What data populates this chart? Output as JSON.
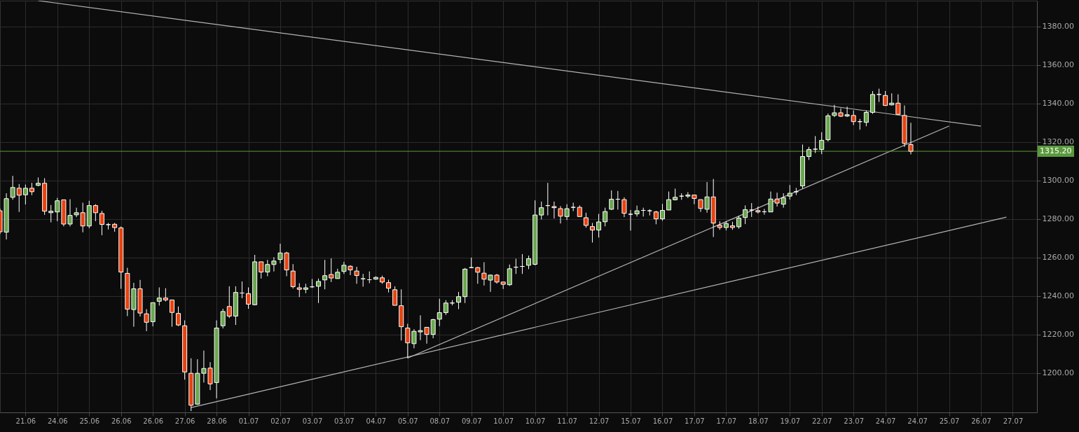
{
  "chart_data": {
    "type": "candlestick",
    "categories": [
      null,
      null,
      null,
      null,
      "21.06",
      null,
      null,
      null,
      null,
      "24.06",
      null,
      null,
      null,
      null,
      "25.06",
      null,
      null,
      null,
      null,
      "26.06",
      null,
      null,
      null,
      null,
      "26.06",
      null,
      null,
      null,
      null,
      "27.06",
      null,
      null,
      null,
      null,
      "28.06",
      null,
      null,
      null,
      null,
      "01.07",
      null,
      null,
      null,
      null,
      "02.07",
      null,
      null,
      null,
      null,
      "03.07",
      null,
      null,
      null,
      null,
      "03.07",
      null,
      null,
      null,
      null,
      "04.07",
      null,
      null,
      null,
      null,
      "05.07",
      null,
      null,
      null,
      null,
      "08.07",
      null,
      null,
      null,
      null,
      "09.07",
      null,
      null,
      null,
      null,
      "10.07",
      null,
      null,
      null,
      null,
      "10.07",
      null,
      null,
      null,
      null,
      "11.07",
      null,
      null,
      null,
      null,
      "12.07",
      null,
      null,
      null,
      null,
      "15.07",
      null,
      null,
      null,
      null,
      "16.07",
      null,
      null,
      null,
      null,
      "17.07",
      null,
      null,
      null,
      null,
      "17.07",
      null,
      null,
      null,
      null,
      "18.07",
      null,
      null,
      null,
      null,
      "19.07",
      null,
      null,
      null,
      null,
      "22.07",
      null,
      null,
      null,
      null,
      "23.07",
      null,
      null,
      null,
      null,
      "24.07",
      null,
      null,
      null,
      null,
      "24.07",
      null,
      null,
      null,
      null,
      "25.07",
      null,
      null,
      null,
      null,
      "26.07",
      null,
      null,
      null,
      null,
      "27.07",
      null,
      null,
      null
    ],
    "ohlc": [
      [
        1284.3,
        1285.5,
        1272.2,
        1273.4
      ],
      [
        1273.2,
        1293.4,
        1269.4,
        1290.6
      ],
      [
        1291.3,
        1302.4,
        1290.0,
        1296.4
      ],
      [
        1296.0,
        1298.2,
        1283.7,
        1292.4
      ],
      [
        1292.6,
        1297.9,
        1287.6,
        1296.0
      ],
      [
        1296.0,
        1298.8,
        1292.4,
        1294.2
      ],
      [
        1297.5,
        1301.6,
        1297.0,
        1298.6
      ],
      [
        1298.6,
        1301.2,
        1282.2,
        1284.1
      ],
      [
        1283.3,
        1287.3,
        1278.3,
        1284.1
      ],
      [
        1283.7,
        1291.0,
        1278.9,
        1289.5
      ],
      [
        1290.0,
        1290.0,
        1276.2,
        1277.4
      ],
      [
        1277.4,
        1290.3,
        1276.2,
        1281.9
      ],
      [
        1282.2,
        1285.9,
        1281.0,
        1283.3
      ],
      [
        1283.3,
        1288.5,
        1273.1,
        1276.4
      ],
      [
        1276.4,
        1289.5,
        1275.2,
        1287.0
      ],
      [
        1287.0,
        1287.7,
        1278.9,
        1283.3
      ],
      [
        1282.9,
        1284.3,
        1271.6,
        1277.2
      ],
      [
        1277.1,
        1278.0,
        1274.6,
        1277.1
      ],
      [
        1277.3,
        1278.0,
        1273.4,
        1275.6
      ],
      [
        1275.4,
        1276.2,
        1243.8,
        1252.5
      ],
      [
        1251.8,
        1254.7,
        1229.6,
        1233.2
      ],
      [
        1233.0,
        1246.9,
        1224.1,
        1243.8
      ],
      [
        1243.8,
        1248.4,
        1229.4,
        1231.2
      ],
      [
        1230.8,
        1233.2,
        1221.8,
        1226.4
      ],
      [
        1226.7,
        1236.6,
        1224.3,
        1236.6
      ],
      [
        1237.3,
        1244.5,
        1235.1,
        1239.0
      ],
      [
        1239.0,
        1244.1,
        1237.2,
        1238.0
      ],
      [
        1238.0,
        1238.0,
        1224.1,
        1231.5
      ],
      [
        1231.0,
        1234.6,
        1224.4,
        1225.0
      ],
      [
        1224.6,
        1227.4,
        1196.6,
        1200.6
      ],
      [
        1199.9,
        1207.7,
        1180.3,
        1183.3
      ],
      [
        1183.9,
        1207.2,
        1183.5,
        1199.9
      ],
      [
        1199.9,
        1211.7,
        1195.1,
        1202.4
      ],
      [
        1202.6,
        1205.7,
        1191.2,
        1194.4
      ],
      [
        1195.1,
        1227.4,
        1186.9,
        1223.4
      ],
      [
        1224.6,
        1233.4,
        1223.2,
        1232.0
      ],
      [
        1234.6,
        1245.1,
        1228.6,
        1229.6
      ],
      [
        1229.6,
        1245.1,
        1225.0,
        1241.9
      ],
      [
        1241.6,
        1247.6,
        1238.9,
        1241.6
      ],
      [
        1241.3,
        1244.5,
        1233.4,
        1235.8
      ],
      [
        1235.5,
        1261.4,
        1235.2,
        1257.8
      ],
      [
        1257.8,
        1257.8,
        1249.1,
        1252.5
      ],
      [
        1252.5,
        1258.8,
        1250.3,
        1256.4
      ],
      [
        1256.4,
        1260.2,
        1252.8,
        1258.2
      ],
      [
        1259.0,
        1267.2,
        1257.0,
        1262.4
      ],
      [
        1262.4,
        1263.0,
        1250.3,
        1253.6
      ],
      [
        1253.0,
        1256.6,
        1243.9,
        1244.9
      ],
      [
        1244.3,
        1246.7,
        1239.5,
        1243.5
      ],
      [
        1243.5,
        1246.4,
        1241.5,
        1244.3
      ],
      [
        1244.8,
        1248.9,
        1244.2,
        1244.8
      ],
      [
        1245.1,
        1249.1,
        1236.4,
        1247.6
      ],
      [
        1248.4,
        1258.8,
        1243.5,
        1250.6
      ],
      [
        1251.2,
        1259.6,
        1247.3,
        1249.4
      ],
      [
        1249.1,
        1254.2,
        1249.1,
        1252.4
      ],
      [
        1252.8,
        1257.8,
        1251.5,
        1256.0
      ],
      [
        1255.5,
        1256.0,
        1250.9,
        1253.6
      ],
      [
        1253.0,
        1255.2,
        1246.4,
        1250.7
      ],
      [
        1249.0,
        1251.5,
        1244.9,
        1249.0
      ],
      [
        1248.5,
        1252.8,
        1246.7,
        1248.5
      ],
      [
        1248.8,
        1250.3,
        1248.5,
        1249.7
      ],
      [
        1249.5,
        1250.6,
        1246.4,
        1247.3
      ],
      [
        1247.0,
        1248.5,
        1241.9,
        1244.1
      ],
      [
        1243.3,
        1245.1,
        1235.2,
        1235.2
      ],
      [
        1235.0,
        1243.5,
        1216.9,
        1224.1
      ],
      [
        1223.4,
        1225.6,
        1207.7,
        1215.7
      ],
      [
        1215.3,
        1222.8,
        1212.9,
        1221.7
      ],
      [
        1221.4,
        1230.0,
        1217.1,
        1222.1
      ],
      [
        1223.8,
        1223.8,
        1215.3,
        1220.1
      ],
      [
        1220.1,
        1228.2,
        1218.1,
        1227.8
      ],
      [
        1228.0,
        1238.6,
        1224.4,
        1231.4
      ],
      [
        1231.4,
        1237.9,
        1230.2,
        1236.4
      ],
      [
        1236.4,
        1237.9,
        1235.2,
        1236.4
      ],
      [
        1236.8,
        1242.2,
        1233.2,
        1239.7
      ],
      [
        1239.7,
        1254.6,
        1236.4,
        1254.0
      ],
      [
        1254.8,
        1260.0,
        1254.6,
        1254.8
      ],
      [
        1254.8,
        1255.2,
        1246.4,
        1252.4
      ],
      [
        1251.9,
        1257.6,
        1245.5,
        1248.8
      ],
      [
        1248.3,
        1251.2,
        1242.2,
        1250.9
      ],
      [
        1250.9,
        1251.5,
        1246.5,
        1247.3
      ],
      [
        1247.3,
        1247.3,
        1243.7,
        1246.1
      ],
      [
        1245.9,
        1256.4,
        1245.3,
        1254.2
      ],
      [
        1255.0,
        1259.4,
        1251.5,
        1255.0
      ],
      [
        1255.4,
        1261.8,
        1251.5,
        1255.4
      ],
      [
        1256.0,
        1261.0,
        1254.0,
        1259.4
      ],
      [
        1256.5,
        1289.7,
        1256.0,
        1282.1
      ],
      [
        1282.1,
        1289.1,
        1279.8,
        1285.9
      ],
      [
        1287.0,
        1298.8,
        1281.9,
        1287.0
      ],
      [
        1286.5,
        1289.1,
        1280.3,
        1285.9
      ],
      [
        1285.4,
        1286.7,
        1277.7,
        1281.5
      ],
      [
        1281.3,
        1287.7,
        1279.5,
        1285.4
      ],
      [
        1286.1,
        1288.5,
        1284.1,
        1286.1
      ],
      [
        1286.1,
        1287.1,
        1281.3,
        1281.3
      ],
      [
        1280.7,
        1283.3,
        1275.5,
        1276.7
      ],
      [
        1276.1,
        1278.0,
        1267.8,
        1274.3
      ],
      [
        1274.3,
        1282.7,
        1270.4,
        1278.5
      ],
      [
        1278.6,
        1285.9,
        1276.2,
        1283.9
      ],
      [
        1285.1,
        1294.9,
        1284.7,
        1290.3
      ],
      [
        1290.3,
        1294.6,
        1284.9,
        1290.3
      ],
      [
        1290.1,
        1291.3,
        1281.0,
        1283.0
      ],
      [
        1282.5,
        1284.7,
        1274.0,
        1282.5
      ],
      [
        1282.7,
        1287.0,
        1281.3,
        1284.3
      ],
      [
        1284.5,
        1285.9,
        1281.3,
        1284.5
      ],
      [
        1284.3,
        1285.1,
        1281.9,
        1284.3
      ],
      [
        1283.7,
        1284.3,
        1277.3,
        1280.1
      ],
      [
        1280.1,
        1287.9,
        1279.1,
        1284.5
      ],
      [
        1284.7,
        1294.3,
        1284.7,
        1290.1
      ],
      [
        1290.0,
        1295.8,
        1289.7,
        1291.3
      ],
      [
        1291.9,
        1293.4,
        1290.0,
        1291.9
      ],
      [
        1291.9,
        1294.0,
        1290.9,
        1292.5
      ],
      [
        1292.5,
        1292.5,
        1287.7,
        1290.7
      ],
      [
        1290.1,
        1290.1,
        1283.7,
        1285.5
      ],
      [
        1285.1,
        1299.2,
        1283.3,
        1291.5
      ],
      [
        1291.5,
        1300.8,
        1270.7,
        1277.9
      ],
      [
        1276.8,
        1278.9,
        1274.4,
        1275.6
      ],
      [
        1275.6,
        1278.9,
        1274.1,
        1277.7
      ],
      [
        1276.5,
        1278.6,
        1274.4,
        1275.6
      ],
      [
        1276.0,
        1281.7,
        1275.0,
        1280.5
      ],
      [
        1280.8,
        1287.1,
        1277.4,
        1284.9
      ],
      [
        1284.7,
        1288.3,
        1281.1,
        1284.7
      ],
      [
        1284.4,
        1286.5,
        1282.9,
        1283.7
      ],
      [
        1283.8,
        1285.3,
        1282.3,
        1283.8
      ],
      [
        1283.7,
        1294.3,
        1283.7,
        1290.4
      ],
      [
        1290.4,
        1293.7,
        1286.5,
        1288.3
      ],
      [
        1287.7,
        1293.4,
        1285.9,
        1291.1
      ],
      [
        1291.9,
        1297.7,
        1290.1,
        1293.4
      ],
      [
        1294.2,
        1296.2,
        1292.5,
        1294.2
      ],
      [
        1297.2,
        1318.7,
        1295.8,
        1312.5
      ],
      [
        1312.5,
        1317.5,
        1310.7,
        1316.1
      ],
      [
        1316.3,
        1323.1,
        1314.3,
        1316.3
      ],
      [
        1316.1,
        1325.1,
        1313.7,
        1320.9
      ],
      [
        1321.2,
        1334.8,
        1320.3,
        1333.6
      ],
      [
        1333.8,
        1339.3,
        1333.0,
        1335.2
      ],
      [
        1335.2,
        1337.5,
        1333.0,
        1333.4
      ],
      [
        1333.5,
        1338.4,
        1333.0,
        1334.2
      ],
      [
        1333.8,
        1336.4,
        1328.8,
        1330.6
      ],
      [
        1330.6,
        1332.0,
        1326.4,
        1330.6
      ],
      [
        1330.2,
        1336.4,
        1328.2,
        1335.4
      ],
      [
        1335.4,
        1346.5,
        1334.6,
        1344.7
      ],
      [
        1344.7,
        1347.7,
        1340.8,
        1344.7
      ],
      [
        1344.2,
        1346.5,
        1338.8,
        1339.0
      ],
      [
        1339.3,
        1345.3,
        1339.0,
        1340.2
      ],
      [
        1340.2,
        1344.8,
        1334.2,
        1334.4
      ],
      [
        1333.8,
        1339.0,
        1317.5,
        1319.3
      ],
      [
        1318.7,
        1330.0,
        1313.6,
        1315.2
      ],
      null,
      null,
      null,
      null,
      null,
      null,
      null,
      null,
      null,
      null,
      null,
      null,
      null,
      null,
      null,
      null,
      null,
      null,
      null
    ],
    "series": [
      {
        "type": "line",
        "color": "#b4b4b4",
        "values": [
          null,
          null,
          null,
          null,
          null,
          null,
          1393.4,
          null,
          null,
          null,
          null,
          null,
          null,
          null,
          null,
          null,
          null,
          null,
          null,
          null,
          null,
          null,
          null,
          null,
          null,
          null,
          null,
          null,
          null,
          null,
          null,
          null,
          null,
          null,
          null,
          null,
          null,
          null,
          null,
          null,
          null,
          null,
          null,
          null,
          null,
          null,
          null,
          null,
          null,
          null,
          null,
          null,
          null,
          null,
          null,
          null,
          null,
          null,
          null,
          null,
          null,
          null,
          null,
          null,
          null,
          null,
          null,
          null,
          null,
          null,
          null,
          null,
          null,
          null,
          null,
          null,
          null,
          null,
          null,
          null,
          null,
          null,
          null,
          null,
          null,
          null,
          null,
          null,
          null,
          null,
          null,
          null,
          null,
          null,
          null,
          null,
          null,
          null,
          null,
          null,
          null,
          null,
          null,
          null,
          null,
          null,
          null,
          null,
          null,
          null,
          null,
          null,
          null,
          null,
          null,
          null,
          null,
          null,
          null,
          null,
          null,
          null,
          null,
          null,
          null,
          null,
          null,
          null,
          null,
          null,
          null,
          null,
          null,
          null,
          null,
          null,
          null,
          null,
          null,
          null,
          null,
          null,
          null,
          null,
          null,
          null,
          null,
          null,
          null,
          null,
          null,
          null,
          null,
          null,
          1328.3,
          null,
          null,
          null,
          null,
          null,
          null,
          null,
          null
        ]
      },
      {
        "type": "line",
        "color": "#b4b4b4",
        "values": [
          null,
          null,
          null,
          null,
          null,
          null,
          null,
          null,
          null,
          null,
          null,
          null,
          null,
          null,
          null,
          null,
          null,
          null,
          null,
          null,
          null,
          null,
          null,
          null,
          null,
          null,
          null,
          null,
          null,
          null,
          null,
          null,
          null,
          null,
          null,
          null,
          null,
          null,
          null,
          null,
          null,
          null,
          null,
          null,
          null,
          null,
          null,
          null,
          null,
          null,
          null,
          null,
          null,
          null,
          null,
          null,
          null,
          null,
          null,
          null,
          null,
          null,
          null,
          null,
          1207.8,
          null,
          null,
          null,
          null,
          null,
          null,
          null,
          null,
          null,
          null,
          null,
          null,
          null,
          null,
          null,
          null,
          null,
          null,
          null,
          null,
          null,
          null,
          null,
          null,
          null,
          null,
          null,
          null,
          null,
          null,
          null,
          null,
          null,
          null,
          null,
          null,
          null,
          null,
          null,
          null,
          null,
          null,
          null,
          null,
          null,
          null,
          null,
          null,
          null,
          null,
          null,
          null,
          null,
          null,
          null,
          null,
          null,
          null,
          null,
          null,
          null,
          null,
          null,
          null,
          null,
          null,
          null,
          null,
          null,
          null,
          null,
          null,
          null,
          null,
          null,
          null,
          null,
          null,
          null,
          null,
          null,
          null,
          null,
          null,
          1328.3,
          null,
          null,
          null,
          null,
          null,
          null,
          null,
          null,
          null,
          null,
          null,
          null,
          null
        ]
      },
      {
        "type": "line",
        "color": "#b4b4b4",
        "values": [
          null,
          null,
          null,
          null,
          null,
          null,
          null,
          null,
          null,
          null,
          null,
          null,
          null,
          null,
          null,
          null,
          null,
          null,
          null,
          null,
          null,
          null,
          null,
          null,
          null,
          null,
          null,
          null,
          null,
          null,
          1182.1,
          null,
          null,
          null,
          null,
          null,
          null,
          null,
          null,
          null,
          null,
          null,
          null,
          null,
          null,
          null,
          null,
          null,
          null,
          null,
          null,
          null,
          null,
          null,
          null,
          null,
          null,
          null,
          null,
          null,
          null,
          null,
          null,
          null,
          null,
          null,
          null,
          null,
          null,
          null,
          null,
          null,
          null,
          null,
          null,
          null,
          null,
          null,
          null,
          null,
          null,
          null,
          null,
          null,
          null,
          null,
          null,
          null,
          null,
          null,
          null,
          null,
          null,
          null,
          null,
          null,
          null,
          null,
          null,
          null,
          null,
          null,
          null,
          null,
          null,
          null,
          null,
          null,
          null,
          null,
          null,
          null,
          null,
          null,
          null,
          null,
          null,
          null,
          null,
          null,
          null,
          null,
          null,
          null,
          null,
          null,
          null,
          null,
          null,
          null,
          null,
          null,
          null,
          null,
          null,
          null,
          null,
          null,
          null,
          null,
          null,
          null,
          null,
          null,
          null,
          null,
          null,
          null,
          null,
          null,
          null,
          null,
          null,
          null,
          null,
          null,
          null,
          null,
          1281.0,
          null,
          null,
          null,
          null
        ]
      }
    ],
    "ref_lines": [
      {
        "axis": "y",
        "value": 1315.2,
        "label": "1315.20",
        "color": "#5a9a3c"
      }
    ],
    "ylim": [
      1179.6,
      1393.4
    ],
    "yticks": [
      {
        "value": 1200,
        "label": "1200.00"
      },
      {
        "value": 1220,
        "label": "1220.00"
      },
      {
        "value": 1240,
        "label": "1240.00"
      },
      {
        "value": 1260,
        "label": "1260.00"
      },
      {
        "value": 1280,
        "label": "1280.00"
      },
      {
        "value": 1300,
        "label": "1300.00"
      },
      {
        "value": 1320,
        "label": "1320.00"
      },
      {
        "value": 1340,
        "label": "1340.00"
      },
      {
        "value": 1360,
        "label": "1360.00"
      },
      {
        "value": 1380,
        "label": "1380.00"
      }
    ],
    "grid": true
  }
}
